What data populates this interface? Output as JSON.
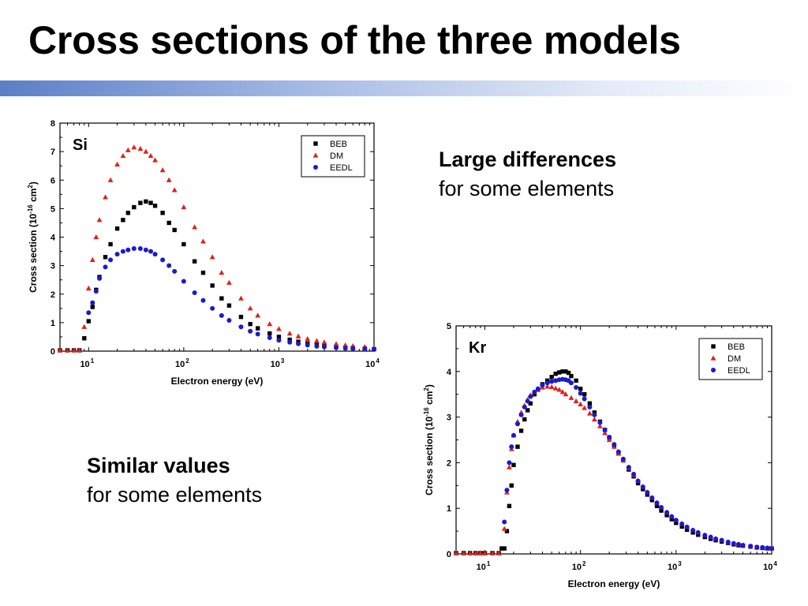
{
  "slide": {
    "title": "Cross sections of the three models",
    "notes": [
      {
        "strong": "Large differences",
        "light": "for some elements"
      },
      {
        "strong": "Similar values",
        "light": "for some elements"
      }
    ]
  },
  "chart_data": [
    {
      "type": "scatter",
      "annotation": "Si",
      "xlabel": "Electron energy (eV)",
      "ylabel": "Cross section (10-16 cm2)",
      "ylabel_parts": [
        "Cross section (10",
        "-16",
        " cm",
        "2",
        ")"
      ],
      "x_scale": "log",
      "xlim": [
        5,
        10000
      ],
      "ylim": [
        0,
        8
      ],
      "x_ticks": [
        {
          "base": "10",
          "exp": "1"
        },
        {
          "base": "10",
          "exp": "2"
        },
        {
          "base": "10",
          "exp": "3"
        },
        {
          "base": "10",
          "exp": "4"
        }
      ],
      "y_ticks": [
        "0",
        "1",
        "2",
        "3",
        "4",
        "5",
        "6",
        "7",
        "8"
      ],
      "legend_position": "top-right",
      "series": [
        {
          "name": "BEB",
          "marker": "square",
          "color": "#000000",
          "x": [
            5,
            6,
            7,
            8,
            9,
            10,
            11,
            12,
            13,
            15,
            17,
            20,
            23,
            26,
            30,
            35,
            40,
            45,
            50,
            60,
            70,
            80,
            100,
            130,
            160,
            200,
            250,
            300,
            400,
            500,
            600,
            800,
            1000,
            1300,
            1600,
            2000,
            2500,
            3000,
            4000,
            5000,
            6000,
            8000,
            10000
          ],
          "y": [
            0,
            0,
            0,
            0,
            0.45,
            1.05,
            1.55,
            2.15,
            2.6,
            3.3,
            3.75,
            4.3,
            4.6,
            4.85,
            5.05,
            5.2,
            5.25,
            5.2,
            5.1,
            4.85,
            4.5,
            4.25,
            3.75,
            3.15,
            2.75,
            2.3,
            1.85,
            1.6,
            1.2,
            0.95,
            0.8,
            0.62,
            0.5,
            0.4,
            0.33,
            0.27,
            0.22,
            0.19,
            0.15,
            0.12,
            0.11,
            0.09,
            0.07
          ]
        },
        {
          "name": "DM",
          "marker": "triangle",
          "color": "#e0201c",
          "x": [
            5,
            6,
            7,
            8,
            9,
            10,
            11,
            12,
            13,
            15,
            17,
            20,
            23,
            26,
            30,
            35,
            40,
            45,
            50,
            60,
            70,
            80,
            100,
            130,
            160,
            200,
            250,
            300,
            400,
            500,
            600,
            800,
            1000,
            1300,
            1600,
            2000,
            2500,
            3000,
            4000,
            5000,
            6000,
            8000,
            10000
          ],
          "y": [
            0,
            0,
            0,
            0,
            0.85,
            2.2,
            3.2,
            4.0,
            4.6,
            5.4,
            6.0,
            6.55,
            6.85,
            7.05,
            7.15,
            7.1,
            7.0,
            6.85,
            6.7,
            6.35,
            6.0,
            5.65,
            5.05,
            4.35,
            3.85,
            3.3,
            2.75,
            2.4,
            1.85,
            1.5,
            1.25,
            0.95,
            0.78,
            0.62,
            0.52,
            0.43,
            0.36,
            0.31,
            0.25,
            0.21,
            0.18,
            0.15,
            0.12
          ]
        },
        {
          "name": "EEDL",
          "marker": "circle",
          "color": "#1a1ad0",
          "x": [
            10,
            11,
            12,
            13,
            15,
            17,
            20,
            23,
            26,
            30,
            35,
            40,
            45,
            50,
            60,
            70,
            80,
            100,
            130,
            160,
            200,
            250,
            300,
            400,
            500,
            600,
            800,
            1000,
            1300,
            1600,
            2000,
            2500,
            3000,
            4000,
            5000,
            6000,
            8000,
            10000
          ],
          "y": [
            1.35,
            1.7,
            2.1,
            2.55,
            2.95,
            3.2,
            3.4,
            3.5,
            3.55,
            3.6,
            3.6,
            3.55,
            3.5,
            3.4,
            3.2,
            3.0,
            2.8,
            2.45,
            2.05,
            1.78,
            1.5,
            1.25,
            1.08,
            0.85,
            0.7,
            0.6,
            0.47,
            0.38,
            0.31,
            0.26,
            0.21,
            0.17,
            0.15,
            0.12,
            0.1,
            0.09,
            0.07,
            0.06
          ]
        }
      ]
    },
    {
      "type": "scatter",
      "annotation": "Kr",
      "xlabel": "Electron energy (eV)",
      "ylabel": "Cross section (10-16 cm2)",
      "ylabel_parts": [
        "Cross section (10",
        "-16",
        " cm",
        "2",
        ")"
      ],
      "x_scale": "log",
      "xlim": [
        5,
        10000
      ],
      "ylim": [
        0,
        5
      ],
      "x_ticks": [
        {
          "base": "10",
          "exp": "1"
        },
        {
          "base": "10",
          "exp": "2"
        },
        {
          "base": "10",
          "exp": "3"
        },
        {
          "base": "10",
          "exp": "4"
        }
      ],
      "y_ticks": [
        "0",
        "1",
        "2",
        "3",
        "4",
        "5"
      ],
      "legend_position": "top-right",
      "series": [
        {
          "name": "BEB",
          "marker": "square",
          "color": "#000000",
          "x": [
            5,
            6,
            7,
            8,
            9,
            10,
            12,
            14,
            15,
            16,
            17,
            18,
            19,
            20,
            22,
            24,
            26,
            28,
            30,
            33,
            36,
            40,
            45,
            50,
            55,
            60,
            65,
            70,
            75,
            80,
            90,
            100,
            110,
            125,
            140,
            160,
            180,
            200,
            225,
            250,
            280,
            320,
            360,
            400,
            450,
            500,
            560,
            630,
            700,
            800,
            900,
            1000,
            1150,
            1300,
            1500,
            1700,
            2000,
            2300,
            2600,
            3000,
            3500,
            4000,
            4500,
            5000,
            6000,
            7000,
            8000,
            9000,
            10000
          ],
          "y": [
            0,
            0,
            0,
            0,
            0,
            0,
            0,
            0,
            0.12,
            0.12,
            0.5,
            1.05,
            1.5,
            1.95,
            2.35,
            2.7,
            2.95,
            3.15,
            3.3,
            3.5,
            3.6,
            3.72,
            3.8,
            3.88,
            3.95,
            3.98,
            4.0,
            4.0,
            3.97,
            3.9,
            3.8,
            3.62,
            3.5,
            3.3,
            3.1,
            2.9,
            2.72,
            2.55,
            2.38,
            2.2,
            2.05,
            1.85,
            1.7,
            1.55,
            1.42,
            1.3,
            1.18,
            1.05,
            0.95,
            0.85,
            0.76,
            0.68,
            0.6,
            0.53,
            0.47,
            0.42,
            0.37,
            0.33,
            0.3,
            0.27,
            0.24,
            0.21,
            0.19,
            0.18,
            0.16,
            0.14,
            0.13,
            0.12,
            0.12
          ]
        },
        {
          "name": "DM",
          "marker": "triangle",
          "color": "#e0201c",
          "x": [
            5,
            6,
            7,
            8,
            9,
            10,
            12,
            14,
            16,
            17,
            18,
            19,
            20,
            22,
            24,
            26,
            28,
            30,
            33,
            36,
            40,
            45,
            50,
            55,
            60,
            65,
            70,
            80,
            90,
            100,
            110,
            125,
            140,
            160,
            180,
            200,
            225,
            250,
            280,
            320,
            360,
            400,
            450,
            500,
            560,
            630,
            700,
            800,
            900,
            1000,
            1150,
            1300,
            1500,
            1700,
            2000,
            2300,
            2600,
            3000,
            3500,
            4000,
            4500,
            5000,
            6000,
            7000,
            8000,
            9000,
            10000
          ],
          "y": [
            0,
            0,
            0,
            0,
            0,
            0,
            0,
            0,
            0.55,
            1.35,
            1.9,
            2.3,
            2.6,
            2.9,
            3.1,
            3.25,
            3.38,
            3.48,
            3.55,
            3.6,
            3.65,
            3.67,
            3.66,
            3.63,
            3.6,
            3.55,
            3.5,
            3.42,
            3.35,
            3.28,
            3.2,
            3.08,
            2.95,
            2.8,
            2.65,
            2.5,
            2.35,
            2.2,
            2.05,
            1.88,
            1.73,
            1.6,
            1.47,
            1.35,
            1.23,
            1.12,
            1.02,
            0.91,
            0.82,
            0.74,
            0.66,
            0.59,
            0.52,
            0.47,
            0.41,
            0.37,
            0.33,
            0.3,
            0.26,
            0.23,
            0.21,
            0.19,
            0.17,
            0.15,
            0.14,
            0.13,
            0.12
          ]
        },
        {
          "name": "EEDL",
          "marker": "circle",
          "color": "#1a1ad0",
          "x": [
            16,
            17,
            18,
            19,
            20,
            22,
            24,
            26,
            28,
            30,
            33,
            36,
            40,
            45,
            50,
            55,
            60,
            65,
            70,
            75,
            80,
            90,
            100,
            110,
            125,
            140,
            160,
            180,
            200,
            225,
            250,
            280,
            320,
            360,
            400,
            450,
            500,
            560,
            630,
            700,
            800,
            900,
            1000,
            1150,
            1300,
            1500,
            1700,
            2000,
            2300,
            2600,
            3000,
            3500,
            4000,
            4500,
            5000,
            6000,
            7000,
            8000,
            9000,
            10000
          ],
          "y": [
            0.7,
            1.4,
            2.0,
            2.35,
            2.6,
            2.85,
            3.05,
            3.22,
            3.35,
            3.45,
            3.55,
            3.62,
            3.7,
            3.75,
            3.78,
            3.8,
            3.82,
            3.83,
            3.82,
            3.8,
            3.75,
            3.65,
            3.52,
            3.4,
            3.22,
            3.05,
            2.88,
            2.72,
            2.56,
            2.4,
            2.24,
            2.08,
            1.9,
            1.75,
            1.6,
            1.47,
            1.35,
            1.23,
            1.12,
            1.02,
            0.91,
            0.82,
            0.74,
            0.66,
            0.59,
            0.52,
            0.47,
            0.41,
            0.37,
            0.33,
            0.3,
            0.26,
            0.23,
            0.21,
            0.19,
            0.17,
            0.15,
            0.14,
            0.13,
            0.12
          ]
        }
      ]
    }
  ]
}
